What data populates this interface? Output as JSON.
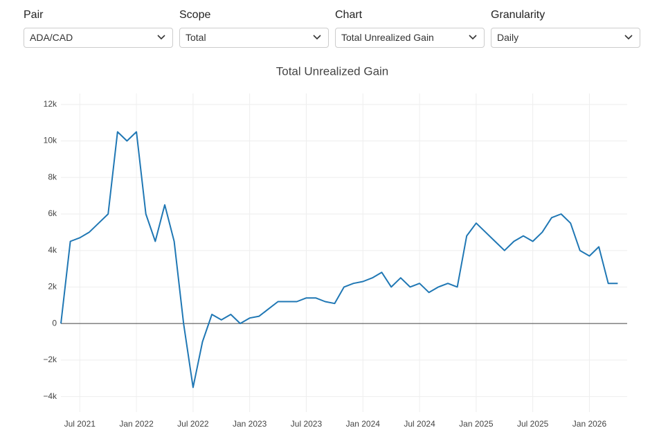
{
  "controls": [
    {
      "label": "Pair",
      "value": "ADA/CAD"
    },
    {
      "label": "Scope",
      "value": "Total"
    },
    {
      "label": "Chart",
      "value": "Total Unrealized Gain"
    },
    {
      "label": "Granularity",
      "value": "Daily"
    }
  ],
  "chart_data": {
    "type": "line",
    "title": "Total Unrealized Gain",
    "x": [
      "2021-05",
      "2021-06",
      "2021-07",
      "2021-08",
      "2021-09",
      "2021-10",
      "2021-11",
      "2021-12",
      "2022-01",
      "2022-02",
      "2022-03",
      "2022-04",
      "2022-05",
      "2022-06",
      "2022-07",
      "2022-08",
      "2022-09",
      "2022-10",
      "2022-11",
      "2022-12",
      "2023-01",
      "2023-02",
      "2023-03",
      "2023-04",
      "2023-05",
      "2023-06",
      "2023-07",
      "2023-08",
      "2023-09",
      "2023-10",
      "2023-11",
      "2023-12",
      "2024-01",
      "2024-02",
      "2024-03",
      "2024-04",
      "2024-05",
      "2024-06",
      "2024-07",
      "2024-08",
      "2024-09",
      "2024-10",
      "2024-11",
      "2024-12",
      "2025-01",
      "2025-02",
      "2025-03",
      "2025-04",
      "2025-05",
      "2025-06",
      "2025-07",
      "2025-08",
      "2025-09",
      "2025-10",
      "2025-11",
      "2025-12",
      "2026-01",
      "2026-02",
      "2026-03",
      "2026-04"
    ],
    "series": [
      {
        "color": "#1f77b4",
        "values": [
          0,
          4500,
          4700,
          5000,
          5500,
          6000,
          10500,
          10000,
          10500,
          6000,
          4500,
          6500,
          4500,
          0,
          -3500,
          -1000,
          500,
          200,
          500,
          0,
          300,
          400,
          800,
          1200,
          1200,
          1200,
          1400,
          1400,
          1200,
          1100,
          2000,
          2200,
          2300,
          2500,
          2800,
          2000,
          2500,
          2000,
          2200,
          1700,
          2000,
          2200,
          2000,
          4800,
          5500,
          5000,
          4500,
          4000,
          4500,
          4800,
          4500,
          5000,
          5800,
          6000,
          5500,
          4000,
          3700,
          4200,
          2200,
          2200
        ]
      }
    ],
    "xlim": [
      "2021-05",
      "2026-05"
    ],
    "xticks": [
      {
        "value": "2021-07",
        "label": "Jul 2021"
      },
      {
        "value": "2022-01",
        "label": "Jan 2022"
      },
      {
        "value": "2022-07",
        "label": "Jul 2022"
      },
      {
        "value": "2023-01",
        "label": "Jan 2023"
      },
      {
        "value": "2023-07",
        "label": "Jul 2023"
      },
      {
        "value": "2024-01",
        "label": "Jan 2024"
      },
      {
        "value": "2024-07",
        "label": "Jul 2024"
      },
      {
        "value": "2025-01",
        "label": "Jan 2025"
      },
      {
        "value": "2025-07",
        "label": "Jul 2025"
      },
      {
        "value": "2026-01",
        "label": "Jan 2026"
      }
    ],
    "ylim": [
      -4850,
      12600
    ],
    "yticks": [
      {
        "value": -4000,
        "label": "−4k"
      },
      {
        "value": -2000,
        "label": "−2k"
      },
      0,
      {
        "value": 2000,
        "label": "2k"
      },
      {
        "value": 4000,
        "label": "4k"
      },
      {
        "value": 6000,
        "label": "6k"
      },
      {
        "value": 8000,
        "label": "8k"
      },
      {
        "value": 10000,
        "label": "10k"
      },
      {
        "value": 12000,
        "label": "12k"
      }
    ],
    "grid": true,
    "zeroline": true
  }
}
